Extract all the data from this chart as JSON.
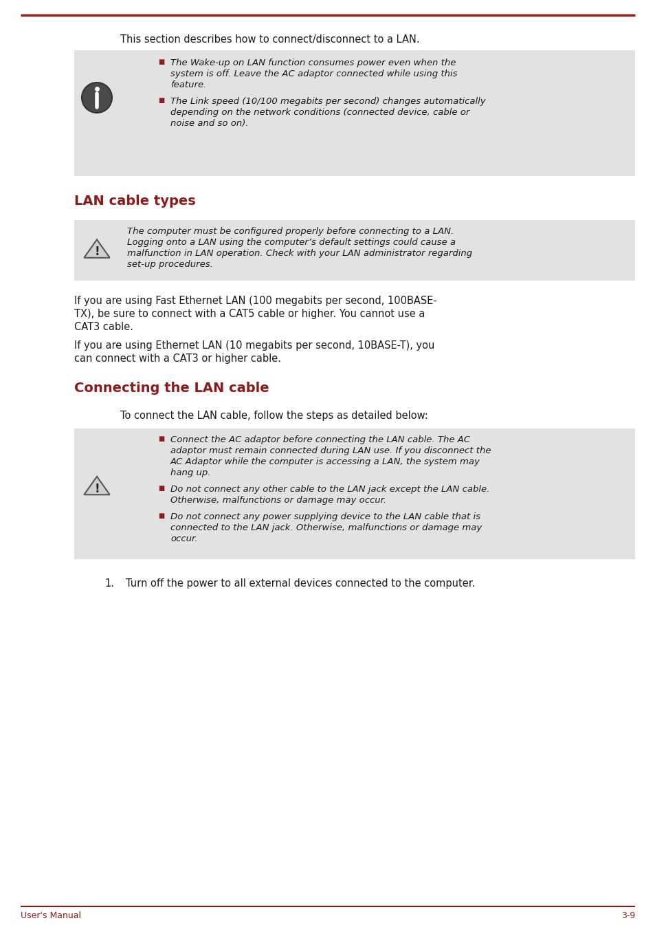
{
  "bg_color": "#ffffff",
  "accent_color": "#8B1A1A",
  "text_color": "#1a1a1a",
  "gray_box_color": "#E2E2E2",
  "top_line_color": "#8B1A1A",
  "bottom_line_color": "#8B1A1A",
  "footer_left": "User's Manual",
  "footer_right": "3-9",
  "intro_text": "This section describes how to connect/disconnect to a LAN.",
  "section1_title": "LAN cable types",
  "section2_title": "Connecting the LAN cable",
  "steps_intro": "To connect the LAN cable, follow the steps as detailed below:",
  "para1_lines": [
    "If you are using Fast Ethernet LAN (100 megabits per second, 100BASE-",
    "TX), be sure to connect with a CAT5 cable or higher. You cannot use a",
    "CAT3 cable."
  ],
  "para2_lines": [
    "If you are using Ethernet LAN (10 megabits per second, 10BASE-T), you",
    "can connect with a CAT3 or higher cable."
  ],
  "info_bullet1_lines": [
    "The Wake-up on LAN function consumes power even when the",
    "system is off. Leave the AC adaptor connected while using this",
    "feature."
  ],
  "info_bullet2_lines": [
    "The Link speed (10/100 megabits per second) changes automatically",
    "depending on the network conditions (connected device, cable or",
    "noise and so on)."
  ],
  "warn1_lines": [
    "The computer must be configured properly before connecting to a LAN.",
    "Logging onto a LAN using the computer’s default settings could cause a",
    "malfunction in LAN operation. Check with your LAN administrator regarding",
    "set-up procedures."
  ],
  "warn2_bullet1_lines": [
    "Connect the AC adaptor before connecting the LAN cable. The AC",
    "adaptor must remain connected during LAN use. If you disconnect the",
    "AC Adaptor while the computer is accessing a LAN, the system may",
    "hang up."
  ],
  "warn2_bullet2_lines": [
    "Do not connect any other cable to the LAN jack except the LAN cable.",
    "Otherwise, malfunctions or damage may occur."
  ],
  "warn2_bullet3_lines": [
    "Do not connect any power supplying device to the LAN cable that is",
    "connected to the LAN jack. Otherwise, malfunctions or damage may",
    "occur."
  ],
  "step1": "Turn off the power to all external devices connected to the computer."
}
